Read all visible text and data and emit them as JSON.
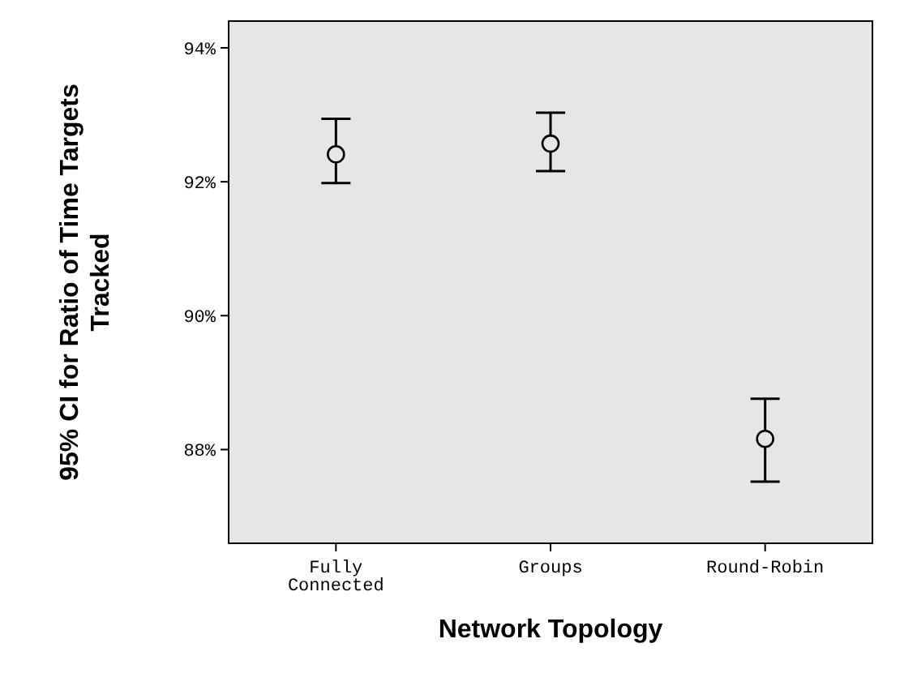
{
  "chart_data": {
    "type": "scatter",
    "xlabel": "Network Topology",
    "ylabel": "95% CI for Ratio of Time Targets Tracked",
    "categories": [
      "Fully Connected",
      "Groups",
      "Round-Robin"
    ],
    "values": [
      92.41,
      92.57,
      88.16
    ],
    "errors": [
      [
        91.98,
        92.94
      ],
      [
        92.16,
        93.03
      ],
      [
        87.52,
        88.76
      ]
    ],
    "color": "#000000",
    "marker": "circle",
    "ylim": [
      86.6,
      94.4
    ],
    "yticks": [
      {
        "value": 88,
        "label": "88%"
      },
      {
        "value": 90,
        "label": "90%"
      },
      {
        "value": 92,
        "label": "92%"
      },
      {
        "value": 94,
        "label": "94%"
      }
    ],
    "grid": false
  }
}
